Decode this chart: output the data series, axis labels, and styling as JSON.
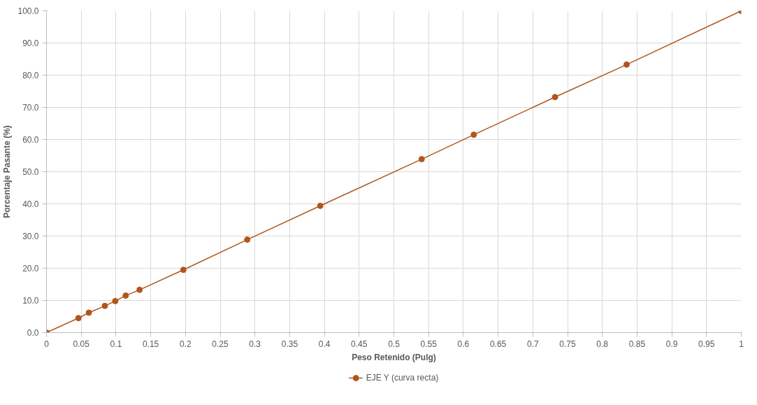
{
  "chart_data": {
    "type": "line",
    "xlabel": "Peso Retenido (Pulg)",
    "ylabel": "Porcentaje Pasante (%)",
    "x": [
      0,
      0.046,
      0.061,
      0.084,
      0.099,
      0.114,
      0.134,
      0.197,
      0.289,
      0.394,
      0.54,
      0.615,
      0.732,
      0.835,
      1.0
    ],
    "series": [
      {
        "name": "EJE Y (curva recta)",
        "color": "#b0561c",
        "values": [
          0,
          4.5,
          6.2,
          8.3,
          9.8,
          11.5,
          13.3,
          19.5,
          28.9,
          39.4,
          53.9,
          61.5,
          73.2,
          83.3,
          100.0
        ]
      }
    ],
    "xlim": [
      0,
      1
    ],
    "ylim": [
      0,
      100
    ],
    "xticks": [
      0,
      0.05,
      0.1,
      0.15,
      0.2,
      0.25,
      0.3,
      0.35,
      0.4,
      0.45,
      0.5,
      0.55,
      0.6,
      0.65,
      0.7,
      0.75,
      0.8,
      0.85,
      0.9,
      0.95,
      1
    ],
    "yticks": [
      {
        "value": 0,
        "label": "0.0"
      },
      {
        "value": 10,
        "label": "10.0"
      },
      {
        "value": 20,
        "label": "20.0"
      },
      {
        "value": 30,
        "label": "30.0"
      },
      {
        "value": 40,
        "label": "40.0"
      },
      {
        "value": 50,
        "label": "50.0"
      },
      {
        "value": 60,
        "label": "60.0"
      },
      {
        "value": 70,
        "label": "70.0"
      },
      {
        "value": 80,
        "label": "80.0"
      },
      {
        "value": 90,
        "label": "90.0"
      },
      {
        "value": 100,
        "label": "100.0"
      }
    ],
    "grid": true,
    "legend": "bottom",
    "marker": "circle",
    "line_style": "solid"
  }
}
